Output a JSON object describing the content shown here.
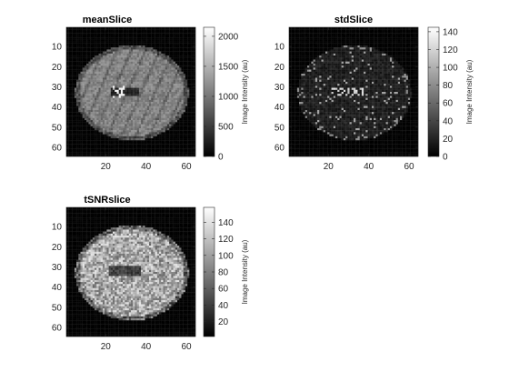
{
  "chart_data": [
    {
      "type": "heatmap",
      "title": "meanSlice",
      "xlabel": "",
      "ylabel": "",
      "x_ticks": [
        20,
        40,
        60
      ],
      "y_ticks": [
        10,
        20,
        30,
        40,
        50,
        60
      ],
      "xlim": [
        0.5,
        64.5
      ],
      "ylim": [
        0.5,
        64.5
      ],
      "colormap": "gray",
      "colorbar": {
        "label": "Image Intensity (au)",
        "ticks": [
          0,
          500,
          1000,
          1500,
          2000
        ],
        "range": [
          0,
          2150
        ]
      }
    },
    {
      "type": "heatmap",
      "title": "stdSlice",
      "xlabel": "",
      "ylabel": "",
      "x_ticks": [
        20,
        40,
        60
      ],
      "y_ticks": [
        10,
        20,
        30,
        40,
        50,
        60
      ],
      "xlim": [
        0.5,
        64.5
      ],
      "ylim": [
        0.5,
        64.5
      ],
      "colormap": "gray",
      "colorbar": {
        "label": "Image Intensity (au)",
        "ticks": [
          0,
          20,
          40,
          60,
          80,
          100,
          120,
          140
        ],
        "range": [
          0,
          145
        ]
      }
    },
    {
      "type": "heatmap",
      "title": "tSNRslice",
      "xlabel": "",
      "ylabel": "",
      "x_ticks": [
        20,
        40,
        60
      ],
      "y_ticks": [
        10,
        20,
        30,
        40,
        50,
        60
      ],
      "xlim": [
        0.5,
        64.5
      ],
      "ylim": [
        0.5,
        64.5
      ],
      "colormap": "gray",
      "colorbar": {
        "label": "Image Intensity (au)",
        "ticks": [
          20,
          40,
          60,
          80,
          100,
          120,
          140
        ],
        "range": [
          2,
          158
        ]
      }
    }
  ]
}
